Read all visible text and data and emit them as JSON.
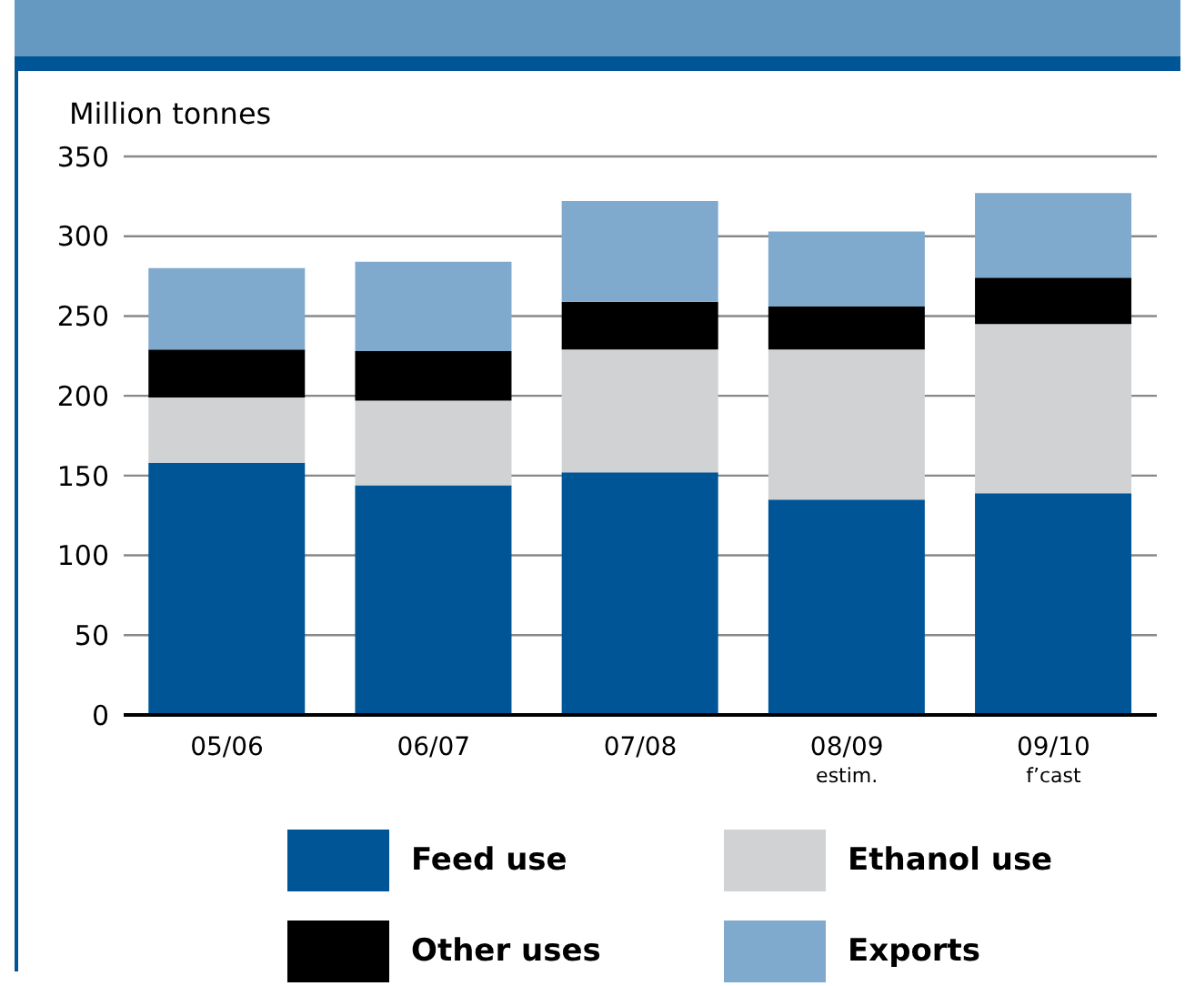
{
  "chart_data": {
    "type": "bar",
    "ylabel": "Million tonnes",
    "categories": [
      "05/06",
      "06/07",
      "07/08",
      "08/09\nestim.",
      "09/10\nf’cast"
    ],
    "stacked": true,
    "ylim": [
      0,
      350
    ],
    "yticks": [
      0,
      50,
      100,
      150,
      200,
      250,
      300,
      350
    ],
    "grid": "y",
    "legend": "bottom",
    "series": [
      {
        "name": "Feed use",
        "color": "#005596",
        "values": [
          158,
          144,
          152,
          135,
          139
        ]
      },
      {
        "name": "Ethanol use",
        "color": "#d1d2d4",
        "values": [
          41,
          53,
          77,
          94,
          106
        ]
      },
      {
        "name": "Other uses",
        "color": "#000000",
        "values": [
          30,
          31,
          30,
          27,
          29
        ]
      },
      {
        "name": "Exports",
        "color": "#7fa9cd",
        "values": [
          51,
          56,
          63,
          47,
          53
        ]
      }
    ]
  }
}
